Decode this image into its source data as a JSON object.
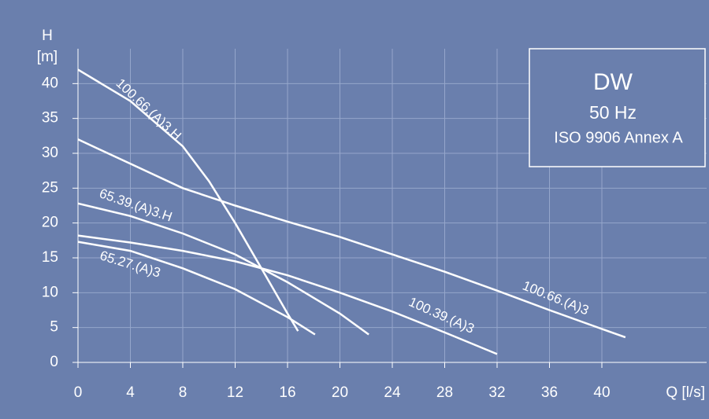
{
  "chart_data": {
    "type": "line",
    "title": "DW",
    "subtitle": "50 Hz",
    "annotation": "ISO 9906 Annex A",
    "y_label_top": "H",
    "y_label": "[m]",
    "x_label": "Q [l/s]",
    "xlim": [
      0,
      48
    ],
    "ylim": [
      0,
      45
    ],
    "xticks": [
      0,
      4,
      8,
      12,
      16,
      20,
      24,
      28,
      32,
      36,
      40
    ],
    "yticks": [
      0,
      5,
      10,
      15,
      20,
      25,
      30,
      35,
      40
    ],
    "grid": true,
    "series": [
      {
        "name": "100.66.(A)3.H",
        "color": "#ffffff",
        "x": [
          0,
          4,
          8,
          10,
          12,
          14,
          16,
          16.8
        ],
        "values": [
          42,
          37.5,
          31,
          26,
          20,
          13.5,
          7,
          4.5
        ]
      },
      {
        "name": "100.66.(A)3",
        "color": "#ffffff",
        "x": [
          0,
          4,
          8,
          12,
          16,
          20,
          24,
          28,
          32,
          36,
          40,
          41.8
        ],
        "values": [
          32,
          28.5,
          25,
          22.5,
          20.2,
          18,
          15.5,
          13,
          10.3,
          7.5,
          4.8,
          3.6
        ]
      },
      {
        "name": "65.39.(A)3.H",
        "color": "#ffffff",
        "x": [
          0,
          4,
          8,
          12,
          16,
          20,
          22.2
        ],
        "values": [
          22.8,
          21,
          18.5,
          15.5,
          11.5,
          7,
          4
        ]
      },
      {
        "name": "100.39.(A)3",
        "color": "#ffffff",
        "x": [
          0,
          4,
          8,
          12,
          16,
          20,
          24,
          28,
          32
        ],
        "values": [
          18.2,
          17.2,
          16,
          14.5,
          12.5,
          10,
          7.3,
          4.3,
          1.2
        ]
      },
      {
        "name": "65.27.(A)3",
        "color": "#ffffff",
        "x": [
          0,
          4,
          8,
          12,
          16,
          18.1
        ],
        "values": [
          17.3,
          16,
          13.5,
          10.5,
          6.5,
          4
        ]
      }
    ]
  }
}
